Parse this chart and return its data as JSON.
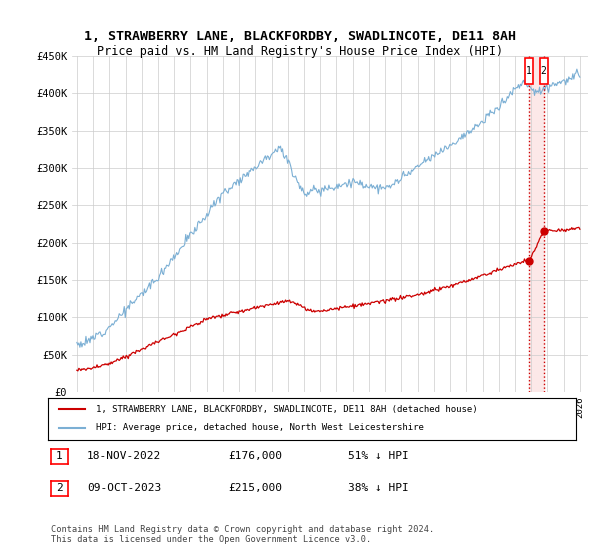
{
  "title": "1, STRAWBERRY LANE, BLACKFORDBY, SWADLINCOTE, DE11 8AH",
  "subtitle": "Price paid vs. HM Land Registry's House Price Index (HPI)",
  "ylim": [
    0,
    450000
  ],
  "yticks": [
    0,
    50000,
    100000,
    150000,
    200000,
    250000,
    300000,
    350000,
    400000,
    450000
  ],
  "ytick_labels": [
    "£0",
    "£50K",
    "£100K",
    "£150K",
    "£200K",
    "£250K",
    "£300K",
    "£350K",
    "£400K",
    "£450K"
  ],
  "hpi_color": "#7bafd4",
  "price_color": "#cc0000",
  "vline_color": "#cc0000",
  "shade_color": "#fce8e8",
  "background_color": "#ffffff",
  "grid_color": "#cccccc",
  "legend_house": "1, STRAWBERRY LANE, BLACKFORDBY, SWADLINCOTE, DE11 8AH (detached house)",
  "legend_hpi": "HPI: Average price, detached house, North West Leicestershire",
  "transaction1_label": "1",
  "transaction1_date": "18-NOV-2022",
  "transaction1_price": "£176,000",
  "transaction1_note": "51% ↓ HPI",
  "transaction2_label": "2",
  "transaction2_date": "09-OCT-2023",
  "transaction2_price": "£215,000",
  "transaction2_note": "38% ↓ HPI",
  "footer": "Contains HM Land Registry data © Crown copyright and database right 2024.\nThis data is licensed under the Open Government Licence v3.0.",
  "transaction1_year": 2022.88,
  "transaction2_year": 2023.77,
  "transaction1_price_val": 176000,
  "transaction2_price_val": 215000
}
